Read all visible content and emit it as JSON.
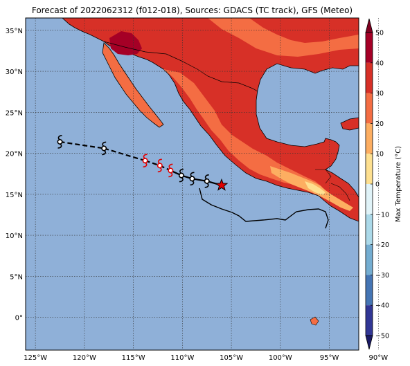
{
  "title": "Forecast of 2022062312 (f012-018), Sources: GDACS (TC track), GFS (Meteo)",
  "map": {
    "lon_range": [
      -126,
      -92
    ],
    "lat_range": [
      -4,
      36.5
    ],
    "lon_ticks": [
      {
        "value": -125,
        "label": "125°W"
      },
      {
        "value": -120,
        "label": "120°W"
      },
      {
        "value": -115,
        "label": "115°W"
      },
      {
        "value": -110,
        "label": "110°W"
      },
      {
        "value": -105,
        "label": "105°W"
      },
      {
        "value": -100,
        "label": "100°W"
      },
      {
        "value": -95,
        "label": "95°W"
      },
      {
        "value": -90,
        "label": "90°W"
      }
    ],
    "lat_ticks": [
      {
        "value": 35,
        "label": "35°N"
      },
      {
        "value": 30,
        "label": "30°N"
      },
      {
        "value": 25,
        "label": "25°N"
      },
      {
        "value": 20,
        "label": "20°N"
      },
      {
        "value": 15,
        "label": "15°N"
      },
      {
        "value": 10,
        "label": "10°N"
      },
      {
        "value": 5,
        "label": "5°N"
      },
      {
        "value": 0,
        "label": "0°"
      }
    ],
    "colors": {
      "ocean": "#8fb0d8",
      "hot_40": "#a50026",
      "warm_30": "#d73027",
      "mild_20": "#f46d43",
      "temperate_10": "#fdae61",
      "cool_0": "#fee090"
    }
  },
  "track": {
    "points": [
      {
        "lon": -122.5,
        "lat": 21.4,
        "color": "#000000"
      },
      {
        "lon": -118.0,
        "lat": 20.6,
        "color": "#000000"
      },
      {
        "lon": -113.8,
        "lat": 19.1,
        "color": "#e00000"
      },
      {
        "lon": -112.3,
        "lat": 18.5,
        "color": "#e00000"
      },
      {
        "lon": -111.2,
        "lat": 17.9,
        "color": "#e00000"
      },
      {
        "lon": -110.1,
        "lat": 17.3,
        "color": "#000000"
      },
      {
        "lon": -109.0,
        "lat": 16.9,
        "color": "#000000"
      },
      {
        "lon": -107.5,
        "lat": 16.6,
        "color": "#000000"
      }
    ],
    "current": {
      "lon": -106.0,
      "lat": 16.1,
      "color": "#e00000"
    }
  },
  "colorbar": {
    "label": "Max Temperature (°C)",
    "ticks": [
      50,
      40,
      30,
      20,
      10,
      0,
      -10,
      -20,
      -30,
      -40,
      -50
    ],
    "tick_labels": [
      "50",
      "40",
      "30",
      "20",
      "10",
      "0",
      "−10",
      "−20",
      "−30",
      "−40",
      "−50"
    ],
    "colors": [
      "#a50026",
      "#d73027",
      "#f46d43",
      "#fdae61",
      "#fee090",
      "#e0f3f8",
      "#abd9e9",
      "#74add1",
      "#4575b4",
      "#313695"
    ],
    "extend_top_color": "#800020",
    "extend_bottom_color": "#1a1a66"
  }
}
